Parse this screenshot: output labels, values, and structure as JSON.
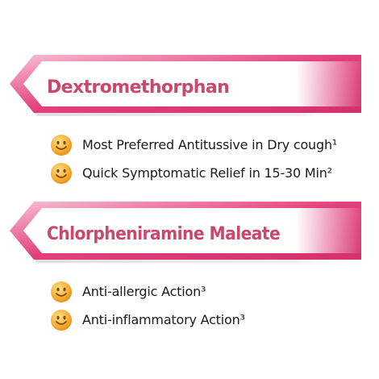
{
  "sections": [
    {
      "title": "Dextromethorphan",
      "items": [
        {
          "icon": "smiley-icon",
          "text": "Most Preferred Antitussive in Dry cough¹"
        },
        {
          "icon": "smiley-icon",
          "text": "Quick Symptomatic Relief in 15-30 Min²"
        }
      ]
    },
    {
      "title": "Chlorpheniramine Maleate",
      "items": [
        {
          "icon": "smiley-icon",
          "text": "Anti-allergic Action³"
        },
        {
          "icon": "smiley-icon",
          "text": "Anti-inflammatory Action³"
        }
      ]
    }
  ],
  "colors": {
    "accent": "#e2407a",
    "accent_light": "#f7a9c3",
    "title": "#c8486e",
    "smiley": "#f5a623"
  }
}
